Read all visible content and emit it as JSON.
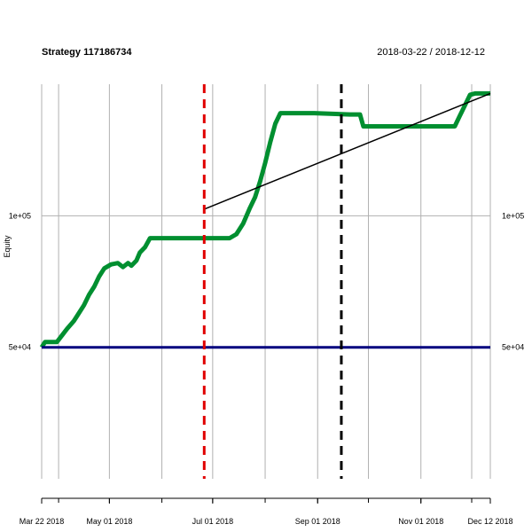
{
  "chart_data": {
    "type": "line",
    "title": "Strategy 117186734",
    "date_range": "2018-03-22 / 2018-12-12",
    "ylabel": "Equity",
    "x_range": [
      "2018-03-22",
      "2018-12-12"
    ],
    "ylim": [
      0,
      150000
    ],
    "y_ticks": [
      {
        "value": 100000,
        "label": "1e+05"
      },
      {
        "value": 50000,
        "label": "5e+04"
      }
    ],
    "x_tick_labels": [
      {
        "date": "2018-03-22",
        "label": "Mar 22 2018"
      },
      {
        "date": "2018-05-01",
        "label": "May 01 2018"
      },
      {
        "date": "2018-07-01",
        "label": "Jul 01 2018"
      },
      {
        "date": "2018-09-01",
        "label": "Sep 01 2018"
      },
      {
        "date": "2018-11-01",
        "label": "Nov 01 2018"
      },
      {
        "date": "2018-12-12",
        "label": "Dec 12 2018"
      }
    ],
    "x_minor_ticks": [
      "2018-04-01",
      "2018-05-01",
      "2018-06-01",
      "2018-07-01",
      "2018-08-01",
      "2018-09-01",
      "2018-10-01",
      "2018-11-01",
      "2018-12-01"
    ],
    "grid_lines": [
      "2018-03-22",
      "2018-04-01",
      "2018-05-01",
      "2018-06-01",
      "2018-07-01",
      "2018-08-01",
      "2018-09-01",
      "2018-10-01",
      "2018-11-01",
      "2018-12-01",
      "2018-12-12"
    ],
    "grid": true,
    "series": [
      {
        "color": "#008f30",
        "style": "solid-thick",
        "points": [
          [
            "2018-03-22",
            50000
          ],
          [
            "2018-03-24",
            52000
          ],
          [
            "2018-03-31",
            52000
          ],
          [
            "2018-04-03",
            54500
          ],
          [
            "2018-04-06",
            57000
          ],
          [
            "2018-04-10",
            60000
          ],
          [
            "2018-04-13",
            63000
          ],
          [
            "2018-04-16",
            66000
          ],
          [
            "2018-04-19",
            70000
          ],
          [
            "2018-04-22",
            73000
          ],
          [
            "2018-04-25",
            77000
          ],
          [
            "2018-04-28",
            80000
          ],
          [
            "2018-05-02",
            81500
          ],
          [
            "2018-05-06",
            82000
          ],
          [
            "2018-05-09",
            80500
          ],
          [
            "2018-05-12",
            82000
          ],
          [
            "2018-05-14",
            81000
          ],
          [
            "2018-05-17",
            83000
          ],
          [
            "2018-05-19",
            86000
          ],
          [
            "2018-05-22",
            88000
          ],
          [
            "2018-05-25",
            91500
          ],
          [
            "2018-06-10",
            91500
          ],
          [
            "2018-06-25",
            91500
          ],
          [
            "2018-07-05",
            91500
          ],
          [
            "2018-07-11",
            91500
          ],
          [
            "2018-07-15",
            93000
          ],
          [
            "2018-07-19",
            97000
          ],
          [
            "2018-07-23",
            103000
          ],
          [
            "2018-07-26",
            107000
          ],
          [
            "2018-07-29",
            113000
          ],
          [
            "2018-08-01",
            120000
          ],
          [
            "2018-08-04",
            128000
          ],
          [
            "2018-08-07",
            135000
          ],
          [
            "2018-08-10",
            139000
          ],
          [
            "2018-08-30",
            139000
          ],
          [
            "2018-09-20",
            138500
          ],
          [
            "2018-09-26",
            138500
          ],
          [
            "2018-09-28",
            134000
          ],
          [
            "2018-10-10",
            134000
          ],
          [
            "2018-10-31",
            134000
          ],
          [
            "2018-11-21",
            134000
          ],
          [
            "2018-11-24",
            138000
          ],
          [
            "2018-11-27",
            142000
          ],
          [
            "2018-11-30",
            146000
          ],
          [
            "2018-12-03",
            146500
          ],
          [
            "2018-12-12",
            146500
          ]
        ]
      },
      {
        "color": "#000000",
        "style": "solid-thin",
        "points": [
          [
            "2018-06-26",
            102500
          ],
          [
            "2018-12-12",
            146500
          ]
        ]
      },
      {
        "color": "#00007f",
        "style": "solid-thick",
        "points": [
          [
            "2018-03-22",
            50000
          ],
          [
            "2018-12-12",
            50000
          ]
        ]
      }
    ],
    "vertical_markers": [
      {
        "date": "2018-06-26",
        "color": "#e00000",
        "style": "dashed"
      },
      {
        "date": "2018-09-15",
        "color": "#000000",
        "style": "dashed"
      }
    ],
    "grid_color": "#b0b0b0"
  }
}
